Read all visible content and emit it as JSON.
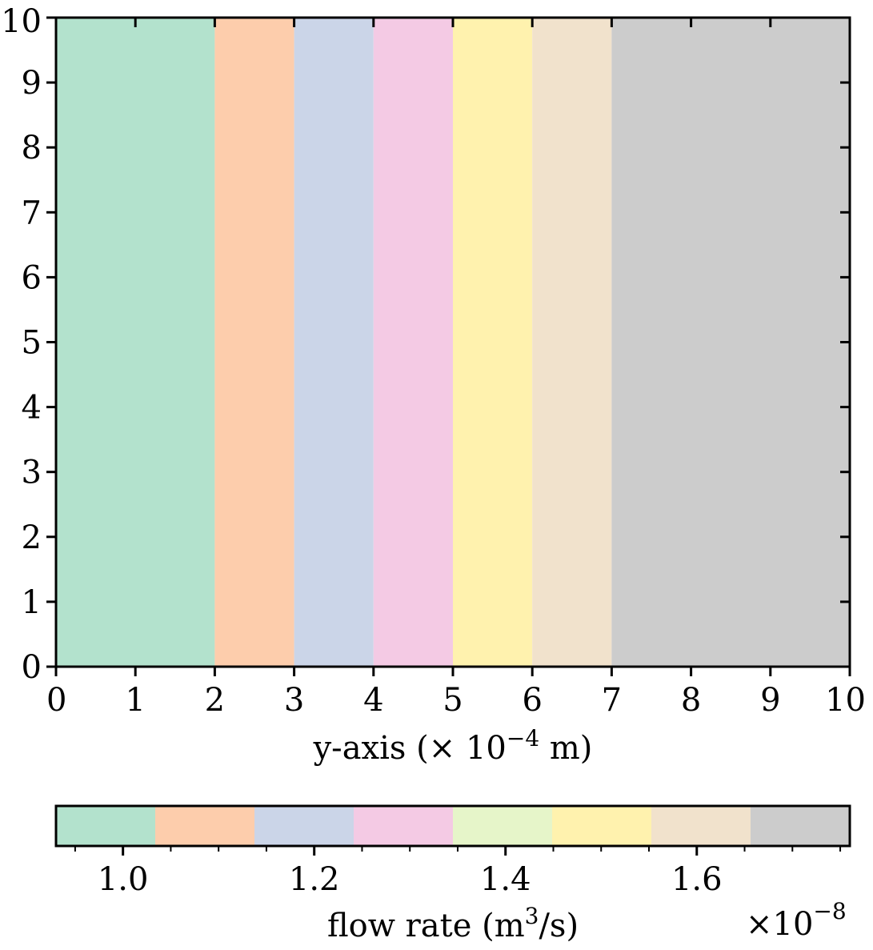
{
  "chart_data": [
    {
      "type": "heatmap",
      "title": "",
      "xlabel": "y-axis (× 10",
      "xlabel_exponent": "−4",
      "xlabel_unit": " m)",
      "ylabel": "",
      "xlim": [
        0,
        10
      ],
      "ylim": [
        0,
        10
      ],
      "x_ticks": [
        "0",
        "1",
        "2",
        "3",
        "4",
        "5",
        "6",
        "7",
        "8",
        "9",
        "10"
      ],
      "y_ticks": [
        "0",
        "1",
        "2",
        "3",
        "4",
        "5",
        "6",
        "7",
        "8",
        "9",
        "10"
      ],
      "grid": false,
      "bands": [
        {
          "x0": 0,
          "x1": 2,
          "color": "#b3e2cd"
        },
        {
          "x0": 2,
          "x1": 3,
          "color": "#fdcdac"
        },
        {
          "x0": 3,
          "x1": 4,
          "color": "#cbd5e8"
        },
        {
          "x0": 4,
          "x1": 5,
          "color": "#f4cae4"
        },
        {
          "x0": 5,
          "x1": 6,
          "color": "#fff2ae"
        },
        {
          "x0": 6,
          "x1": 7,
          "color": "#f1e2cc"
        },
        {
          "x0": 7,
          "x1": 10,
          "color": "#cccccc"
        }
      ]
    },
    {
      "type": "colorbar",
      "label_pre": "flow rate (m",
      "label_sup": "3",
      "label_post": "/s)",
      "range": [
        0.93,
        1.76
      ],
      "offset_text": "×10",
      "offset_exponent": "−8",
      "tick_values": [
        1.0,
        1.2,
        1.4,
        1.6
      ],
      "tick_labels": [
        "1.0",
        "1.2",
        "1.4",
        "1.6"
      ],
      "minor_step": 0.05,
      "colors": [
        "#b3e2cd",
        "#fdcdac",
        "#cbd5e8",
        "#f4cae4",
        "#e6f5c9",
        "#fff2ae",
        "#f1e2cc",
        "#cccccc"
      ]
    }
  ]
}
